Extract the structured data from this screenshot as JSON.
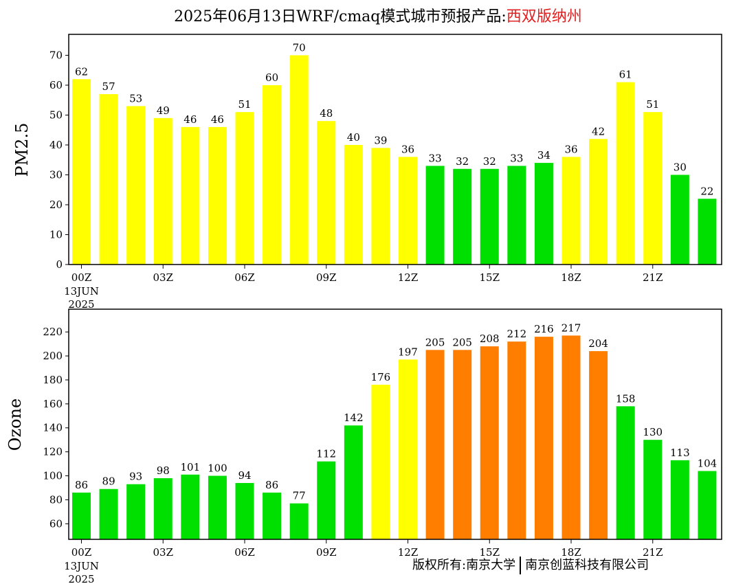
{
  "title": {
    "prefix": "2025年06月13日WRF/cmaq模式城市预报产品:",
    "location": "西双版纳州"
  },
  "colors": {
    "green": "#00e000",
    "yellow": "#ffff00",
    "orange": "#ff7e00",
    "location_text": "#e02020"
  },
  "chart_data": [
    {
      "type": "bar",
      "ylabel": "PM2.5",
      "ylim": [
        0,
        77
      ],
      "yticks": [
        0,
        10,
        20,
        30,
        40,
        50,
        60,
        70
      ],
      "xticks": [
        "00Z",
        "03Z",
        "06Z",
        "09Z",
        "12Z",
        "15Z",
        "18Z",
        "21Z"
      ],
      "date_label": [
        "13JUN",
        "2025"
      ],
      "values": [
        62,
        57,
        53,
        49,
        46,
        46,
        51,
        60,
        70,
        48,
        40,
        39,
        36,
        33,
        32,
        32,
        33,
        34,
        36,
        42,
        61,
        51,
        30,
        22
      ],
      "bar_colors": [
        "yellow",
        "yellow",
        "yellow",
        "yellow",
        "yellow",
        "yellow",
        "yellow",
        "yellow",
        "yellow",
        "yellow",
        "yellow",
        "yellow",
        "yellow",
        "green",
        "green",
        "green",
        "green",
        "green",
        "yellow",
        "yellow",
        "yellow",
        "yellow",
        "green",
        "green"
      ]
    },
    {
      "type": "bar",
      "ylabel": "Ozone",
      "ylim": [
        47,
        239
      ],
      "yticks": [
        60,
        80,
        100,
        120,
        140,
        160,
        180,
        200,
        220
      ],
      "xticks": [
        "00Z",
        "03Z",
        "06Z",
        "09Z",
        "12Z",
        "15Z",
        "18Z",
        "21Z"
      ],
      "date_label": [
        "13JUN",
        "2025"
      ],
      "values": [
        86,
        89,
        93,
        98,
        101,
        100,
        94,
        86,
        77,
        112,
        142,
        176,
        197,
        205,
        205,
        208,
        212,
        216,
        217,
        204,
        158,
        130,
        113,
        104
      ],
      "bar_colors": [
        "green",
        "green",
        "green",
        "green",
        "green",
        "green",
        "green",
        "green",
        "green",
        "green",
        "green",
        "yellow",
        "yellow",
        "orange",
        "orange",
        "orange",
        "orange",
        "orange",
        "orange",
        "orange",
        "green",
        "green",
        "green",
        "green"
      ]
    }
  ],
  "copyright": {
    "left": "版权所有:南京大学",
    "right": "南京创蓝科技有限公司"
  }
}
